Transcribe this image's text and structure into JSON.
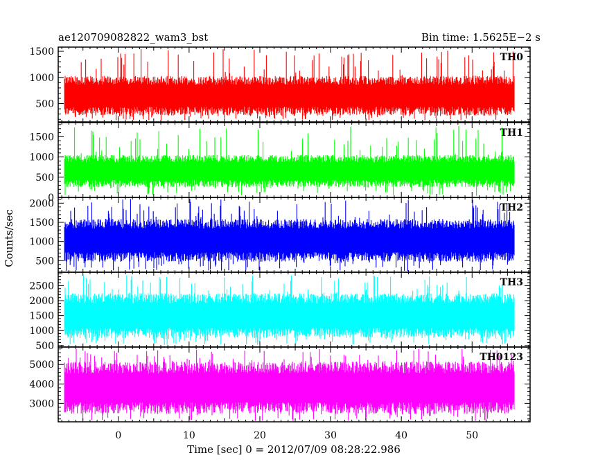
{
  "header": {
    "left": "ae120709082822_wam3_bst",
    "right": "Bin time: 1.5625E−2 s"
  },
  "chart_data": {
    "type": "line",
    "title": "ae120709082822_wam3_bst",
    "subtitle": "Bin time: 1.5625E−2 s",
    "xlabel": "Time [sec] 0 = 2012/07/09 08:28:22.986",
    "ylabel": "Counts/sec",
    "xlim": [
      -8.5,
      58.2
    ],
    "data_x_range": [
      -7.6,
      56.0
    ],
    "x_ticks": [
      0,
      10,
      20,
      30,
      40,
      50
    ],
    "x_tick_labels": [
      "0",
      "10",
      "20",
      "30",
      "40",
      "50"
    ],
    "grid": false,
    "series": [
      {
        "name": "TH0",
        "color": "#ff0000",
        "ylim": [
          150,
          1580
        ],
        "center": 650,
        "half_spread": 380,
        "spike_max": 1560,
        "spike_min": 180,
        "y_ticks": [
          500,
          1000,
          1500
        ],
        "y_tick_labels": [
          "500",
          "1000",
          "1500"
        ]
      },
      {
        "name": "TH1",
        "color": "#00ff00",
        "ylim": [
          0,
          1850
        ],
        "center": 650,
        "half_spread": 400,
        "spike_max": 1800,
        "spike_min": 40,
        "y_ticks": [
          0,
          500,
          1000,
          1500
        ],
        "y_tick_labels": [
          "0",
          "500",
          "1000",
          "1500"
        ]
      },
      {
        "name": "TH2",
        "color": "#0000ff",
        "ylim": [
          200,
          2150
        ],
        "center": 1030,
        "half_spread": 560,
        "spike_max": 2120,
        "spike_min": 230,
        "y_ticks": [
          500,
          1000,
          1500,
          2000
        ],
        "y_tick_labels": [
          "500",
          "1000",
          "1500",
          "2000"
        ]
      },
      {
        "name": "TH3",
        "color": "#00ffff",
        "ylim": [
          450,
          2950
        ],
        "center": 1500,
        "half_spread": 750,
        "spike_max": 2900,
        "spike_min": 520,
        "y_ticks": [
          500,
          1000,
          1500,
          2000,
          2500
        ],
        "y_tick_labels": [
          "500",
          "1000",
          "1500",
          "2000",
          "2500"
        ]
      },
      {
        "name": "TH0123",
        "color": "#ff00ff",
        "ylim": [
          2050,
          5900
        ],
        "center": 3800,
        "half_spread": 1350,
        "spike_max": 5850,
        "spike_min": 2080,
        "y_ticks": [
          3000,
          4000,
          5000
        ],
        "y_tick_labels": [
          "3000",
          "4000",
          "5000"
        ]
      }
    ]
  }
}
